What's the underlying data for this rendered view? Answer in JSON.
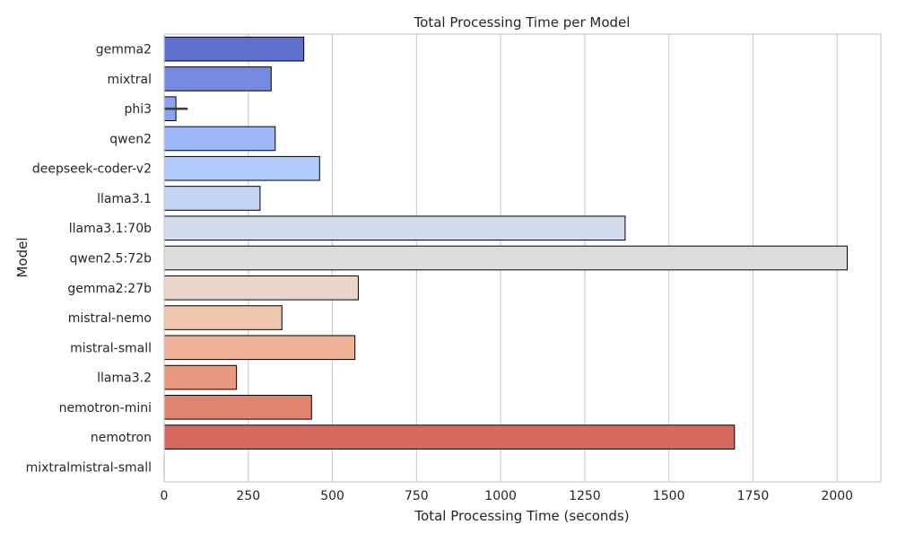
{
  "chart_data": {
    "type": "bar",
    "orientation": "horizontal",
    "title": "Total Processing Time per Model",
    "xlabel": "Total Processing Time (seconds)",
    "ylabel": "Model",
    "xlim": [
      0,
      2130
    ],
    "xticks": [
      0,
      250,
      500,
      750,
      1000,
      1250,
      1500,
      1750,
      2000
    ],
    "grid": "vertical",
    "legend": "none",
    "palette": "coolwarm",
    "categories": [
      "gemma2",
      "mixtral",
      "phi3",
      "qwen2",
      "deepseek-coder-v2",
      "llama3.1",
      "llama3.1:70b",
      "qwen2.5:72b",
      "gemma2:27b",
      "mistral-nemo",
      "mistral-small",
      "llama3.2",
      "nemotron-mini",
      "nemotron",
      "mixtralmistral-small"
    ],
    "values": [
      415,
      318,
      35,
      330,
      462,
      285,
      1370,
      2030,
      577,
      350,
      567,
      215,
      438,
      1695,
      0
    ],
    "error_bars": [
      null,
      null,
      {
        "low": 0,
        "high": 70
      },
      null,
      null,
      null,
      null,
      null,
      null,
      null,
      null,
      null,
      null,
      null,
      null
    ],
    "colors": [
      "#5e71cf",
      "#758ae0",
      "#8ba3ef",
      "#9fb9f8",
      "#b0cbfc",
      "#c3d4f5",
      "#d2dcec",
      "#dddddd",
      "#ead5cb",
      "#f0c5ad",
      "#eeb097",
      "#e8997d",
      "#df846f",
      "#d6685f",
      "#cccccc"
    ]
  }
}
